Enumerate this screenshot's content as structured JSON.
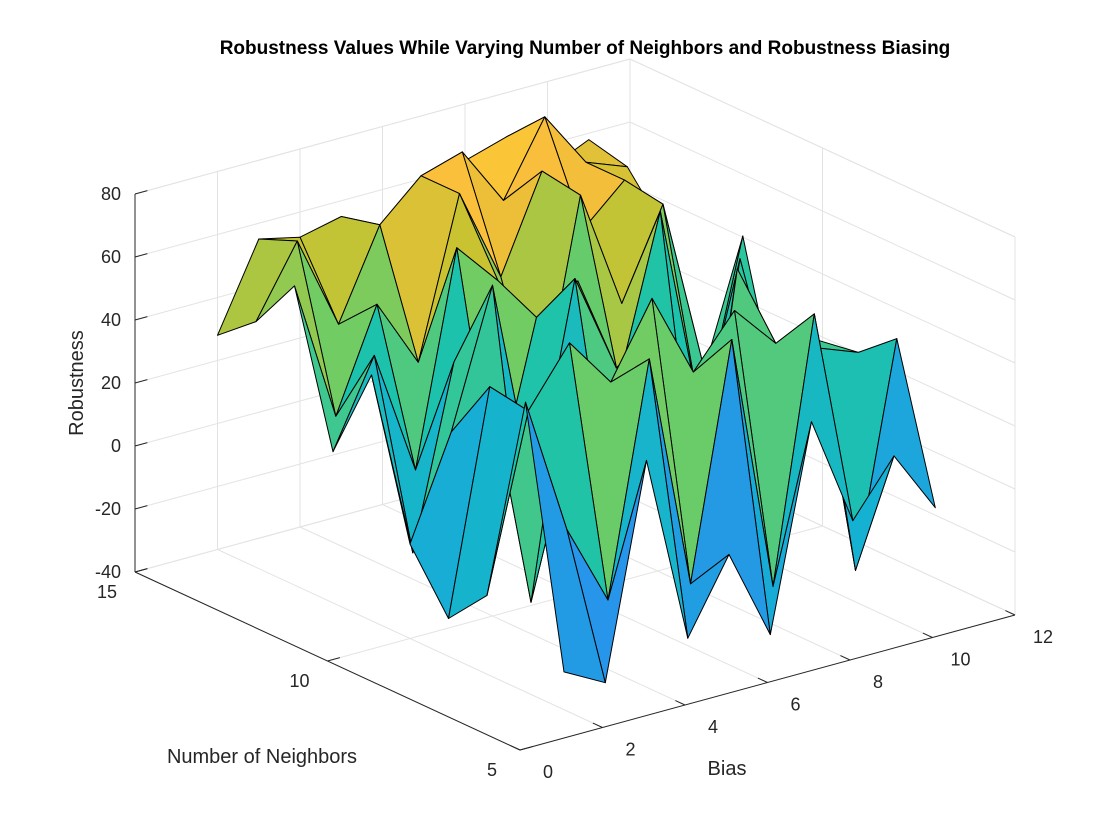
{
  "chart_data": {
    "type": "surface",
    "title": "Robustness Values While Varying Number of Neighbors and Robustness Biasing",
    "xlabel": "Bias",
    "ylabel": "Number of Neighbors",
    "zlabel": "Robustness",
    "xlim": [
      0,
      12
    ],
    "ylim": [
      5,
      15
    ],
    "zlim": [
      -40,
      80
    ],
    "x_ticks": [
      "0",
      "2",
      "4",
      "6",
      "8",
      "10",
      "12"
    ],
    "y_ticks": [
      "5",
      "10",
      "15"
    ],
    "z_ticks": [
      "-40",
      "-20",
      "0",
      "20",
      "40",
      "60",
      "80"
    ],
    "grid": true,
    "colormap": "parula",
    "x": [
      2,
      3,
      4,
      5,
      6,
      7,
      8,
      9,
      10,
      11
    ],
    "y": [
      6,
      7,
      8,
      9,
      10,
      11,
      12,
      13,
      14,
      15
    ],
    "z": [
      [
        -28,
        -35,
        32,
        -28,
        -5,
        -34,
        30,
        -5,
        12,
        -8
      ],
      [
        52,
        8,
        -18,
        55,
        -20,
        54,
        -28,
        55,
        -30,
        40
      ],
      [
        -15,
        40,
        58,
        42,
        65,
        38,
        54,
        40,
        35,
        30
      ],
      [
        -28,
        42,
        -30,
        20,
        -15,
        45,
        -32,
        58,
        12,
        28
      ],
      [
        -10,
        22,
        65,
        -5,
        60,
        28,
        38,
        -30,
        52,
        -2
      ],
      [
        38,
        -22,
        35,
        -10,
        42,
        50,
        15,
        65,
        -5,
        50
      ],
      [
        8,
        35,
        -5,
        62,
        48,
        2,
        68,
        30,
        58,
        2
      ],
      [
        55,
        10,
        42,
        20,
        70,
        40,
        70,
        48,
        60,
        40
      ],
      [
        38,
        60,
        30,
        58,
        70,
        74,
        55,
        78,
        60,
        55
      ],
      [
        28,
        55,
        52,
        55,
        45,
        48,
        62,
        66,
        52,
        58
      ]
    ]
  }
}
